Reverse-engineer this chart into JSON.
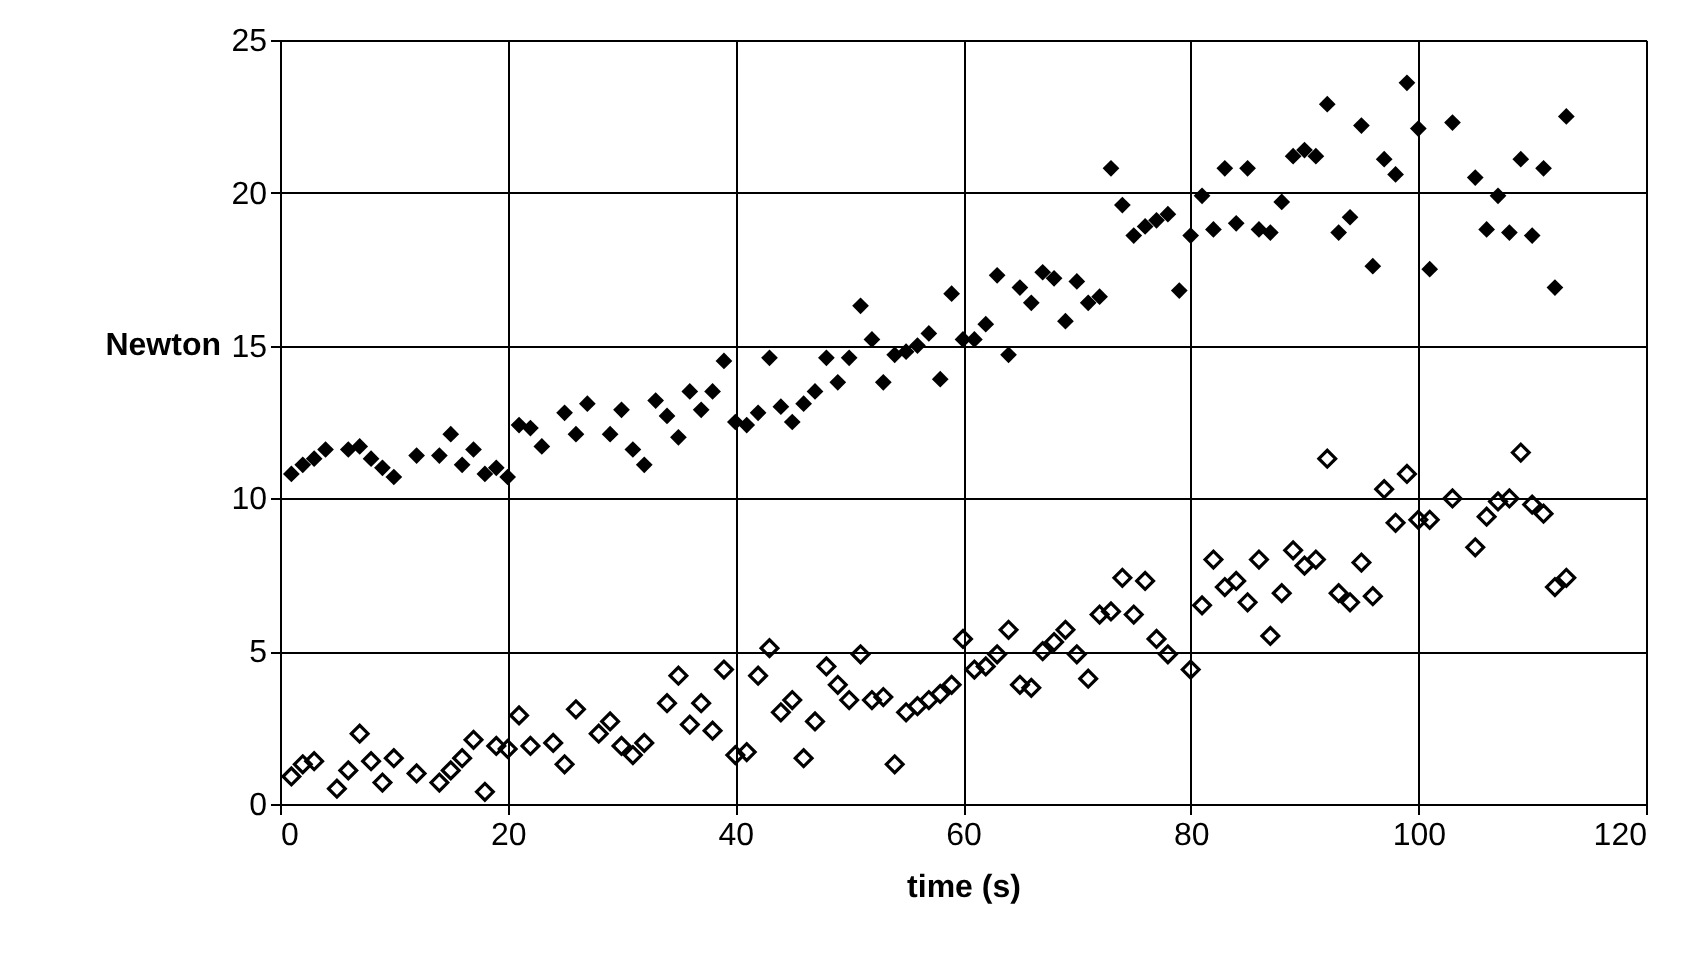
{
  "chart_data": {
    "type": "scatter",
    "xlabel": "time (s)",
    "ylabel": "Newton",
    "xlim": [
      0,
      120
    ],
    "xticks": [
      0,
      20,
      40,
      60,
      80,
      100,
      120
    ],
    "ylim": [
      0,
      25
    ],
    "yticks": [
      0,
      5,
      10,
      15,
      20,
      25
    ],
    "grid": true,
    "marker": "diamond",
    "series": [
      {
        "color": "#000000",
        "x": [
          1,
          2,
          3,
          4,
          6,
          7,
          8,
          9,
          10,
          12,
          14,
          15,
          16,
          17,
          18,
          19,
          20,
          21,
          22,
          23,
          25,
          26,
          27,
          29,
          30,
          31,
          32,
          33,
          34,
          35,
          36,
          37,
          38,
          39,
          40,
          41,
          42,
          43,
          44,
          45,
          46,
          47,
          48,
          49,
          50,
          51,
          52,
          53,
          54,
          55,
          56,
          57,
          58,
          59,
          60,
          61,
          62,
          63,
          64,
          65,
          66,
          67,
          68,
          69,
          70,
          71,
          72,
          73,
          74,
          75,
          76,
          77,
          78,
          79,
          80,
          81,
          82,
          83,
          84,
          85,
          86,
          87,
          88,
          89,
          90,
          91,
          92,
          93,
          94,
          95,
          96,
          97,
          98,
          99,
          100,
          101,
          103,
          105,
          106,
          107,
          108,
          109,
          110,
          111,
          112,
          113
        ],
        "values": [
          10.8,
          11.1,
          11.3,
          11.6,
          11.6,
          11.7,
          11.3,
          11.0,
          10.7,
          11.4,
          11.4,
          12.1,
          11.1,
          11.6,
          10.8,
          11.0,
          10.7,
          12.4,
          12.3,
          11.7,
          12.8,
          12.1,
          13.1,
          12.1,
          12.9,
          11.6,
          11.1,
          13.2,
          12.7,
          12.0,
          13.5,
          12.9,
          13.5,
          14.5,
          12.5,
          12.4,
          12.8,
          14.6,
          13.0,
          12.5,
          13.1,
          13.5,
          14.6,
          13.8,
          14.6,
          16.3,
          15.2,
          13.8,
          14.7,
          14.8,
          15.0,
          15.4,
          13.9,
          16.7,
          15.2,
          15.2,
          15.7,
          17.3,
          14.7,
          16.9,
          16.4,
          17.4,
          17.2,
          15.8,
          17.1,
          16.4,
          16.6,
          20.8,
          19.6,
          18.6,
          18.9,
          19.1,
          19.3,
          16.8,
          18.6,
          19.9,
          18.8,
          20.8,
          19.0,
          20.8,
          18.8,
          18.7,
          19.7,
          21.2,
          21.4,
          21.2,
          22.9,
          18.7,
          19.2,
          22.2,
          17.6,
          21.1,
          20.6,
          23.6,
          22.1,
          17.5,
          22.3,
          20.5,
          18.8,
          19.9,
          18.7,
          21.1,
          18.6,
          20.8,
          16.9,
          22.5
        ]
      },
      {
        "color": "#000000",
        "x": [
          1,
          2,
          3,
          5,
          6,
          7,
          8,
          9,
          10,
          12,
          14,
          15,
          16,
          17,
          18,
          19,
          20,
          21,
          22,
          24,
          25,
          26,
          28,
          29,
          30,
          31,
          32,
          34,
          35,
          36,
          37,
          38,
          39,
          40,
          41,
          42,
          43,
          44,
          45,
          46,
          47,
          48,
          49,
          50,
          51,
          52,
          53,
          54,
          55,
          56,
          57,
          58,
          59,
          60,
          61,
          62,
          63,
          64,
          65,
          66,
          67,
          68,
          69,
          70,
          71,
          72,
          73,
          74,
          75,
          76,
          77,
          78,
          80,
          81,
          82,
          83,
          84,
          85,
          86,
          87,
          88,
          89,
          90,
          91,
          92,
          93,
          94,
          95,
          96,
          97,
          98,
          99,
          100,
          101,
          103,
          105,
          106,
          107,
          108,
          109,
          110,
          111,
          112,
          113
        ],
        "values": [
          0.9,
          1.3,
          1.4,
          0.5,
          1.1,
          2.3,
          1.4,
          0.7,
          1.5,
          1.0,
          0.7,
          1.1,
          1.5,
          2.1,
          0.4,
          1.9,
          1.8,
          2.9,
          1.9,
          2.0,
          1.3,
          3.1,
          2.3,
          2.7,
          1.9,
          1.6,
          2.0,
          3.3,
          4.2,
          2.6,
          3.3,
          2.4,
          4.4,
          1.6,
          1.7,
          4.2,
          5.1,
          3.0,
          3.4,
          1.5,
          2.7,
          4.5,
          3.9,
          3.4,
          4.9,
          3.4,
          3.5,
          1.3,
          3.0,
          3.2,
          3.4,
          3.6,
          3.9,
          5.4,
          4.4,
          4.5,
          4.9,
          5.7,
          3.9,
          3.8,
          5.0,
          5.3,
          5.7,
          4.9,
          4.1,
          6.2,
          6.3,
          7.4,
          6.2,
          7.3,
          5.4,
          4.9,
          4.4,
          6.5,
          8.0,
          7.1,
          7.3,
          6.6,
          8.0,
          5.5,
          6.9,
          8.3,
          7.8,
          8.0,
          11.3,
          6.9,
          6.6,
          7.9,
          6.8,
          10.3,
          9.2,
          10.8,
          9.3,
          9.3,
          10.0,
          8.4,
          9.4,
          9.9,
          10.0,
          11.5,
          9.8,
          9.5,
          7.1,
          7.4
        ]
      }
    ]
  }
}
